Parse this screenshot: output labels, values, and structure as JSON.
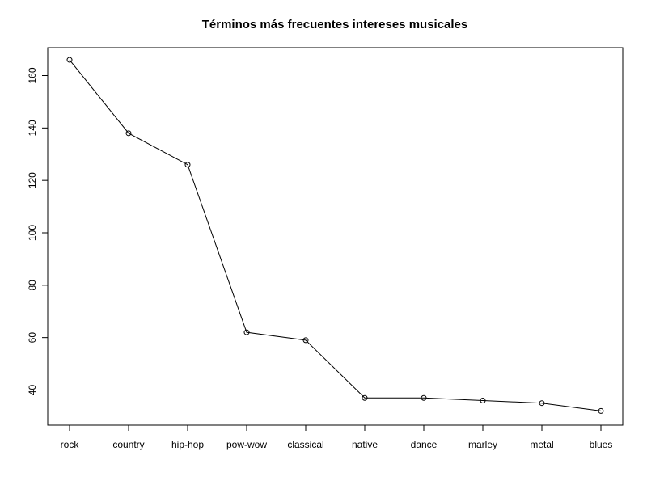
{
  "chart_data": {
    "type": "line",
    "title": "Términos más frecuentes intereses musicales",
    "xlabel": "",
    "ylabel": "",
    "categories": [
      "rock",
      "country",
      "hip-hop",
      "pow-wow",
      "classical",
      "native",
      "dance",
      "marley",
      "metal",
      "blues"
    ],
    "series": [
      {
        "values": [
          166,
          138,
          126,
          62,
          59,
          37,
          37,
          36,
          35,
          32
        ]
      }
    ],
    "yticks": [
      40,
      60,
      80,
      100,
      120,
      140,
      160
    ],
    "ylim": [
      26.6,
      171.4
    ],
    "grid": false,
    "marker": "open-circle",
    "line_color": "#000000"
  }
}
